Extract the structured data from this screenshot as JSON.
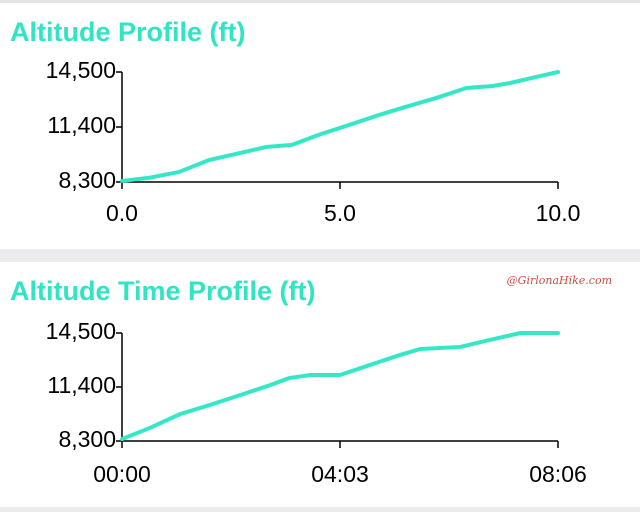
{
  "chart_data": [
    {
      "type": "line",
      "title": "Altitude Profile (ft)",
      "x": [
        0,
        0.6,
        1.3,
        2,
        2.7,
        3.3,
        3.9,
        4.5,
        5.2,
        5.9,
        6.5,
        7.2,
        7.9,
        8.5,
        8.9,
        9.5,
        10
      ],
      "series": [
        {
          "color": "#34e8c6",
          "values": [
            8360,
            8530,
            8860,
            9540,
            9930,
            10270,
            10390,
            10950,
            11510,
            12080,
            12530,
            13030,
            13600,
            13710,
            13880,
            14220,
            14500
          ]
        }
      ],
      "xlim": [
        0,
        10
      ],
      "xticks": [
        {
          "value": 0,
          "label": "0.0"
        },
        {
          "value": 5,
          "label": "5.0"
        },
        {
          "value": 10,
          "label": "10.0"
        }
      ],
      "ylim": [
        8300,
        14500
      ],
      "yticks": [
        {
          "value": 8300,
          "label": "8,300"
        },
        {
          "value": 11400,
          "label": "11,400"
        },
        {
          "value": 14500,
          "label": "14,500"
        }
      ],
      "grid": false
    },
    {
      "type": "line",
      "title": "Altitude Time Profile (ft)",
      "annotation": "@GirlonaHike.com",
      "x": [
        0,
        31,
        65,
        98,
        132,
        165,
        187,
        210,
        243,
        276,
        310,
        332,
        377,
        410,
        444,
        486
      ],
      "series": [
        {
          "color": "#34e8c6",
          "values": [
            8410,
            9050,
            9850,
            10370,
            10940,
            11510,
            11920,
            12090,
            12090,
            12660,
            13240,
            13580,
            13700,
            14100,
            14500,
            14500
          ]
        }
      ],
      "xlim": [
        0,
        486
      ],
      "xticks": [
        {
          "value": 0,
          "label": "00:00"
        },
        {
          "value": 243,
          "label": "04:03"
        },
        {
          "value": 486,
          "label": "08:06"
        }
      ],
      "ylim": [
        8300,
        14500
      ],
      "yticks": [
        {
          "value": 8300,
          "label": "8,300"
        },
        {
          "value": 11400,
          "label": "11,400"
        },
        {
          "value": 14500,
          "label": "14,500"
        }
      ],
      "grid": false
    }
  ]
}
